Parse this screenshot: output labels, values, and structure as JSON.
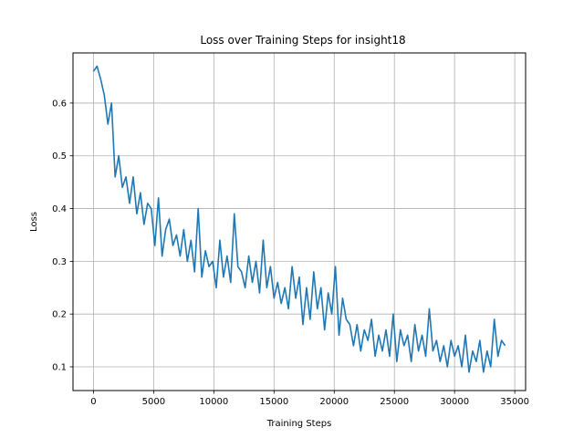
{
  "chart_data": {
    "type": "line",
    "title": "Loss over Training Steps for insight18",
    "xlabel": "Training Steps",
    "ylabel": "Loss",
    "xlim": [
      -1700,
      35900
    ],
    "ylim": [
      0.055,
      0.695
    ],
    "xticks": [
      0,
      5000,
      10000,
      15000,
      20000,
      25000,
      30000,
      35000
    ],
    "yticks": [
      0.1,
      0.2,
      0.3,
      0.4,
      0.5,
      0.6
    ],
    "grid": true,
    "color": "#1f77b4",
    "series": [
      {
        "x": [
          0,
          300,
          600,
          900,
          1200,
          1500,
          1800,
          2100,
          2400,
          2700,
          3000,
          3300,
          3600,
          3900,
          4200,
          4500,
          4800,
          5100,
          5400,
          5700,
          6000,
          6300,
          6600,
          6900,
          7200,
          7500,
          7800,
          8100,
          8400,
          8700,
          9000,
          9300,
          9600,
          9900,
          10200,
          10500,
          10800,
          11100,
          11400,
          11700,
          12000,
          12300,
          12600,
          12900,
          13200,
          13500,
          13800,
          14100,
          14400,
          14700,
          15000,
          15300,
          15600,
          15900,
          16200,
          16500,
          16800,
          17100,
          17400,
          17700,
          18000,
          18300,
          18600,
          18900,
          19200,
          19500,
          19800,
          20100,
          20400,
          20700,
          21000,
          21300,
          21600,
          21900,
          22200,
          22500,
          22800,
          23100,
          23400,
          23700,
          24000,
          24300,
          24600,
          24900,
          25200,
          25500,
          25800,
          26100,
          26400,
          26700,
          27000,
          27300,
          27600,
          27900,
          28200,
          28500,
          28800,
          29100,
          29400,
          29700,
          30000,
          30300,
          30600,
          30900,
          31200,
          31500,
          31800,
          32100,
          32400,
          32700,
          33000,
          33300,
          33600,
          33900,
          34200
        ],
        "y": [
          0.66,
          0.67,
          0.645,
          0.615,
          0.56,
          0.6,
          0.46,
          0.5,
          0.44,
          0.46,
          0.41,
          0.46,
          0.39,
          0.43,
          0.37,
          0.41,
          0.4,
          0.33,
          0.42,
          0.31,
          0.36,
          0.38,
          0.33,
          0.35,
          0.31,
          0.36,
          0.3,
          0.34,
          0.28,
          0.4,
          0.27,
          0.32,
          0.29,
          0.3,
          0.25,
          0.34,
          0.27,
          0.31,
          0.26,
          0.39,
          0.29,
          0.28,
          0.25,
          0.31,
          0.26,
          0.3,
          0.24,
          0.34,
          0.25,
          0.29,
          0.23,
          0.26,
          0.22,
          0.25,
          0.21,
          0.29,
          0.23,
          0.27,
          0.18,
          0.25,
          0.19,
          0.28,
          0.21,
          0.25,
          0.17,
          0.24,
          0.2,
          0.29,
          0.16,
          0.23,
          0.19,
          0.18,
          0.14,
          0.18,
          0.13,
          0.17,
          0.15,
          0.19,
          0.12,
          0.16,
          0.13,
          0.17,
          0.12,
          0.2,
          0.11,
          0.17,
          0.14,
          0.16,
          0.11,
          0.18,
          0.13,
          0.16,
          0.12,
          0.21,
          0.13,
          0.15,
          0.11,
          0.14,
          0.1,
          0.15,
          0.12,
          0.14,
          0.1,
          0.16,
          0.09,
          0.13,
          0.11,
          0.15,
          0.09,
          0.13,
          0.1,
          0.19,
          0.12,
          0.15,
          0.14
        ]
      }
    ]
  }
}
